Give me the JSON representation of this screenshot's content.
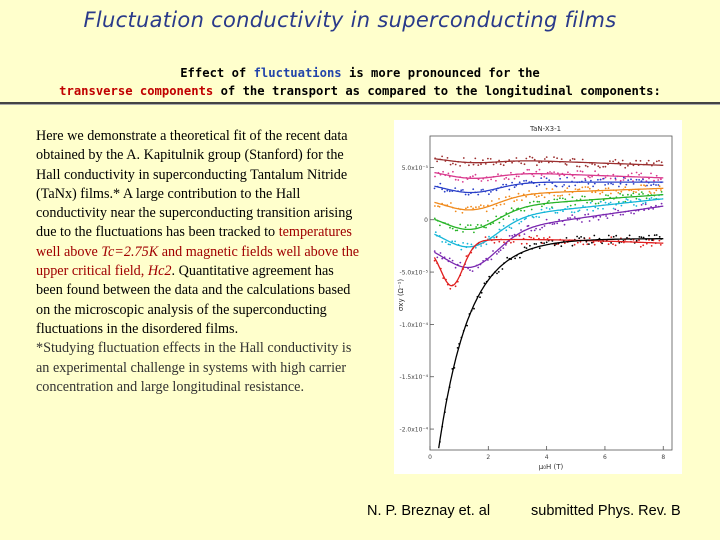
{
  "title": "Fluctuation conductivity in superconducting films",
  "subtitle": {
    "p1": "Effect of ",
    "p2": "fluctuations",
    "p3": " is more pronounced for the",
    "p4": "transverse components",
    "p5": " of the transport as compared to the longitudinal components:"
  },
  "body": {
    "t1": "Here we demonstrate a theoretical fit of the recent data obtained by the A. Kapitulnik group (Stanford) for the Hall conductivity in superconducting Tantalum Nitride (TaNx) films.* A large contribution to the Hall conductivity near the superconducting transition arising due to the fluctuations has been tracked to ",
    "t2": "temperatures well above ",
    "t3": "Tc=2.75K",
    "t4": " and ",
    "t5": "magnetic fields well above the upper critical field, ",
    "t6": "Hc2",
    "t7": ". Quantitative agreement has been found between the data and the calculations based on the microscopic analysis of the superconducting fluctuations in the disordered films.",
    "footnote": "*Studying fluctuation effects in the Hall conductivity is an experimental challenge in systems with high carrier concentration and large longitudinal resistance."
  },
  "chart_data": {
    "type": "scatter",
    "title": "TaN-X3-1",
    "xlabel": "μ₀H (T)",
    "ylabel": "σxy (Ω⁻¹)",
    "xlim": [
      0,
      8.3
    ],
    "ylim": [
      -0.00022,
      8e-05
    ],
    "yticks": [
      {
        "value": 5e-05,
        "label": "5.0x10⁻⁵"
      },
      {
        "value": 0,
        "label": "0"
      },
      {
        "value": -5e-05,
        "label": "-5.0x10⁻⁵"
      },
      {
        "value": -0.0001,
        "label": "-1.0x10⁻⁴"
      },
      {
        "value": -0.00015,
        "label": "-1.5x10⁻⁴"
      },
      {
        "value": -0.0002,
        "label": "-2.0x10⁻⁴"
      }
    ],
    "xticks": [
      {
        "value": 0,
        "label": "0"
      },
      {
        "value": 2,
        "label": "2"
      },
      {
        "value": 4,
        "label": "4"
      },
      {
        "value": 6,
        "label": "6"
      },
      {
        "value": 8,
        "label": "8"
      }
    ],
    "series": [
      {
        "color": "#9b2f2f",
        "kind": "flat",
        "a": 6e-05,
        "m": 4e-06,
        "d": -1e-06
      },
      {
        "color": "#d93a8e",
        "kind": "flat",
        "a": 4.8e-05,
        "m": 7e-06,
        "d": -1e-06
      },
      {
        "color": "#2a40c8",
        "kind": "flat",
        "a": 3.6e-05,
        "m": 1e-05,
        "d": 0.0
      },
      {
        "color": "#f08a1c",
        "kind": "flat",
        "a": 2.2e-05,
        "m": 1.4e-05,
        "d": 1e-06
      },
      {
        "color": "#27b327",
        "kind": "flat",
        "a": 8e-06,
        "m": 2e-05,
        "d": 2e-06
      },
      {
        "color": "#16b6d8",
        "kind": "flat",
        "a": -4e-06,
        "m": 2.6e-05,
        "d": 3e-06
      },
      {
        "color": "#7a28b0",
        "kind": "flat",
        "a": -1.9e-05,
        "m": 3.2e-05,
        "d": 4e-06
      },
      {
        "color": "#e02020",
        "kind": "rise",
        "a": -2.4e-05,
        "m": 3e-05,
        "d": 5e-06
      },
      {
        "color": "#000000",
        "kind": "decay",
        "a": -1.8e-05,
        "m": 2e-05,
        "d": 0.0
      }
    ]
  },
  "footer": {
    "authors": "N. P. Breznay et. al",
    "journal": "submitted Phys. Rev. B"
  }
}
